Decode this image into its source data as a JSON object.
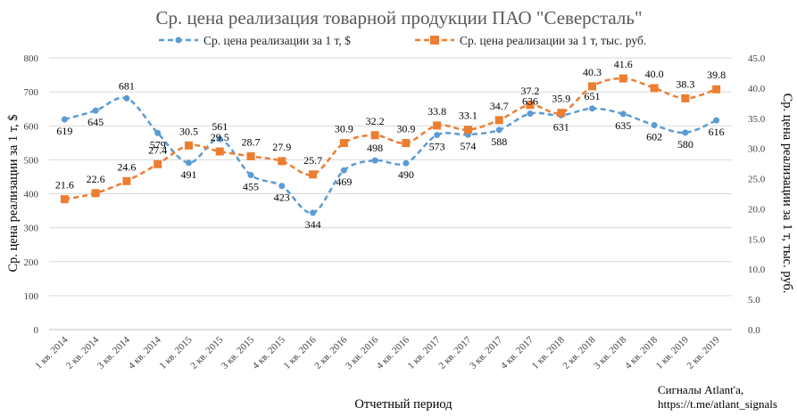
{
  "chart_data": {
    "type": "line",
    "title": "Ср. цена реализация товарной продукции ПАО \"Северсталь\"",
    "xlabel": "Отчетный период",
    "ylabel": "Ср. цена реализации за 1 т, $",
    "y2label": "Ср. цена реализации за 1 т, тыс. руб.",
    "ylim": [
      0,
      800
    ],
    "y2lim": [
      0,
      45
    ],
    "yticks": [
      "0",
      "100",
      "200",
      "300",
      "400",
      "500",
      "600",
      "700",
      "800"
    ],
    "y2ticks": [
      "0.0",
      "5.0",
      "10.0",
      "15.0",
      "20.0",
      "25.0",
      "30.0",
      "35.0",
      "40.0",
      "45.0"
    ],
    "categories": [
      "1 кв. 2014",
      "2 кв. 2014",
      "3 кв. 2014",
      "4 кв. 2014",
      "1 кв. 2015",
      "2 кв. 2015",
      "3 кв. 2015",
      "4 кв. 2015",
      "1 кв. 2016",
      "2 кв. 2016",
      "3 кв. 2016",
      "4 кв. 2016",
      "1 кв. 2017",
      "2 кв. 2017",
      "3 кв. 2017",
      "4 кв. 2017",
      "1 кв. 2018",
      "2 кв. 2018",
      "3 кв. 2018",
      "4 кв. 2018",
      "1 кв. 2019",
      "2 кв. 2019"
    ],
    "series": [
      {
        "name": "Ср. цена реализации за 1 т, $",
        "axis": "left",
        "color": "#5b9bd5",
        "marker": "circle",
        "values": [
          619,
          645,
          681,
          579,
          491,
          561,
          455,
          423,
          344,
          469,
          498,
          490,
          573,
          574,
          588,
          636,
          631,
          651,
          635,
          602,
          580,
          616
        ],
        "labels": [
          "619",
          "645",
          "681",
          "579",
          "491",
          "561",
          "455",
          "423",
          "344",
          "469",
          "498",
          "490",
          "573",
          "574",
          "588",
          "636",
          "631",
          "651",
          "635",
          "602",
          "580",
          "616"
        ]
      },
      {
        "name": "Ср. цена реализации за 1 т, тыс. руб.",
        "axis": "right",
        "color": "#ed7d31",
        "marker": "square",
        "values": [
          21.6,
          22.6,
          24.6,
          27.4,
          30.5,
          29.5,
          28.7,
          27.9,
          25.7,
          30.9,
          32.2,
          30.9,
          33.8,
          33.1,
          34.7,
          37.2,
          35.9,
          40.3,
          41.6,
          40.0,
          38.3,
          39.8
        ],
        "labels": [
          "21.6",
          "22.6",
          "24.6",
          "27.4",
          "30.5",
          "29.5",
          "28.7",
          "27.9",
          "25.7",
          "30.9",
          "32.2",
          "30.9",
          "33.8",
          "33.1",
          "34.7",
          "37.2",
          "35.9",
          "40.3",
          "41.6",
          "40.0",
          "38.3",
          "39.8"
        ]
      }
    ],
    "legend": "top"
  },
  "footer": {
    "line1": "Сигналы Atlant'a,",
    "line2": "https://t.me/atlant_signals"
  }
}
